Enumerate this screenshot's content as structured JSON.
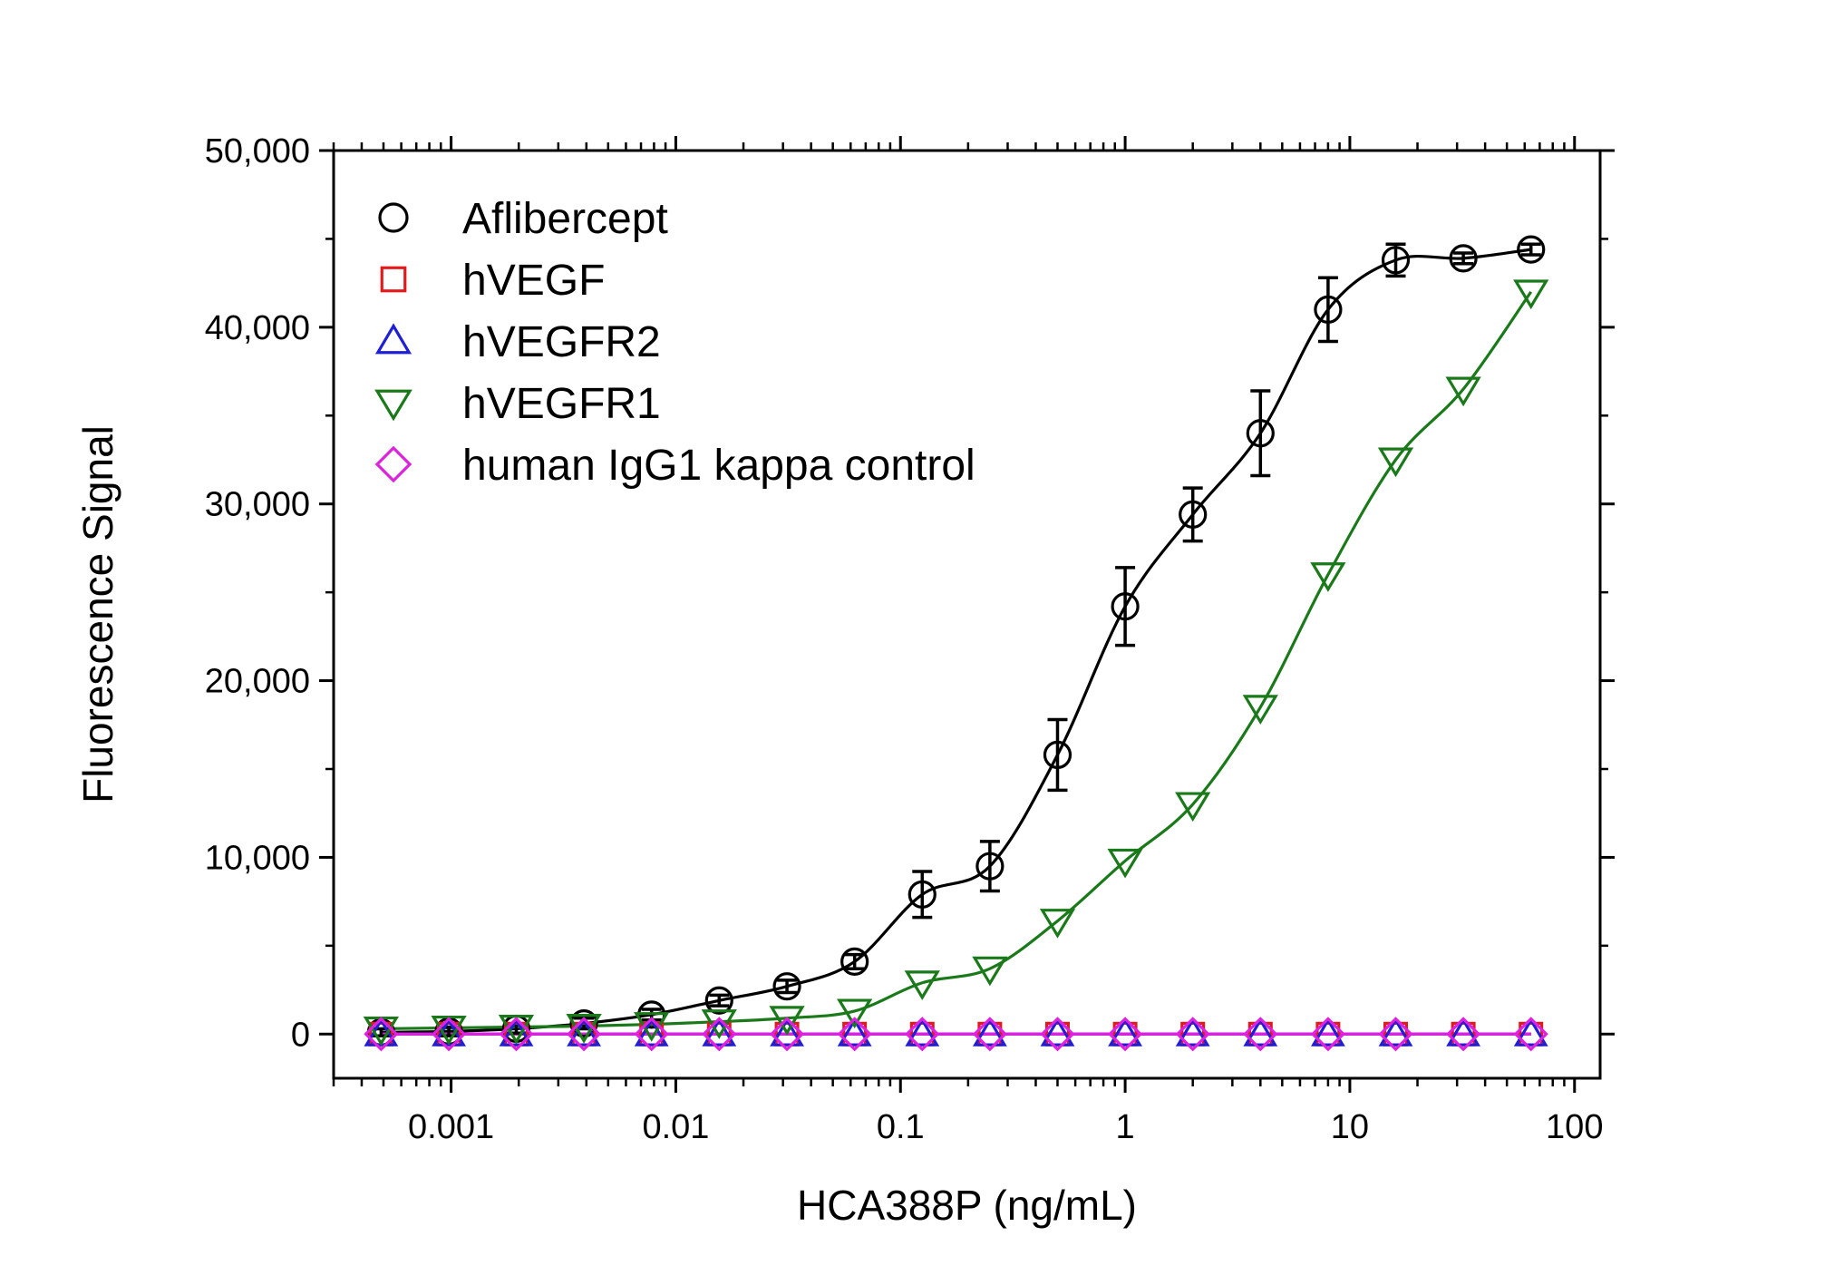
{
  "chart_data": {
    "type": "scatter",
    "xlabel": "HCA388P (ng/mL)",
    "ylabel": "Fluorescence Signal",
    "xscale": "log",
    "xlim": [
      0.0003,
      130
    ],
    "ylim": [
      -2500,
      50000
    ],
    "x_ticks": [
      0.001,
      0.01,
      0.1,
      1,
      10,
      100
    ],
    "x_tick_labels": [
      "0.001",
      "0.01",
      "0.1",
      "1",
      "10",
      "100"
    ],
    "y_ticks": [
      0,
      10000,
      20000,
      30000,
      40000,
      50000
    ],
    "y_tick_labels": [
      "0",
      "10,000",
      "20,000",
      "30,000",
      "40,000",
      "50,000"
    ],
    "legend_position": "top-left",
    "grid": false,
    "x": [
      0.000488,
      0.000977,
      0.00195,
      0.0039,
      0.0078,
      0.0156,
      0.03125,
      0.0625,
      0.125,
      0.25,
      0.5,
      1,
      2,
      4,
      8,
      16,
      32,
      64
    ],
    "series": [
      {
        "name": "Aflibercept",
        "marker": "circle",
        "color": "#000000",
        "values": [
          100,
          150,
          300,
          600,
          1100,
          1900,
          2700,
          4100,
          7900,
          9500,
          15800,
          24200,
          29400,
          34000,
          41000,
          43800,
          43900,
          44400
        ],
        "errors": [
          200,
          250,
          250,
          300,
          300,
          300,
          350,
          400,
          1300,
          1400,
          2000,
          2200,
          1500,
          2400,
          1800,
          900,
          300,
          300
        ],
        "fit": "curve"
      },
      {
        "name": "hVEGF",
        "marker": "square",
        "color": "#e31a1c",
        "values": [
          0,
          0,
          0,
          0,
          0,
          0,
          0,
          0,
          0,
          0,
          0,
          0,
          0,
          0,
          0,
          0,
          0,
          0
        ],
        "fit": "line"
      },
      {
        "name": "hVEGFR2",
        "marker": "triangle-up",
        "color": "#1f1fd6",
        "values": [
          0,
          0,
          0,
          0,
          0,
          0,
          0,
          0,
          0,
          0,
          0,
          0,
          0,
          0,
          0,
          0,
          0,
          0
        ],
        "fit": "line"
      },
      {
        "name": "hVEGFR1",
        "marker": "triangle-down",
        "color": "#1a7a1a",
        "values": [
          300,
          350,
          400,
          450,
          550,
          700,
          900,
          1300,
          2900,
          3700,
          6400,
          9800,
          13000,
          18500,
          26000,
          32500,
          36500,
          42000
        ],
        "fit": "curve"
      },
      {
        "name": "human IgG1 kappa control",
        "marker": "diamond",
        "color": "#e020e0",
        "values": [
          0,
          0,
          0,
          0,
          0,
          0,
          0,
          0,
          0,
          0,
          0,
          0,
          0,
          0,
          0,
          0,
          0,
          0
        ],
        "fit": "line"
      }
    ]
  }
}
